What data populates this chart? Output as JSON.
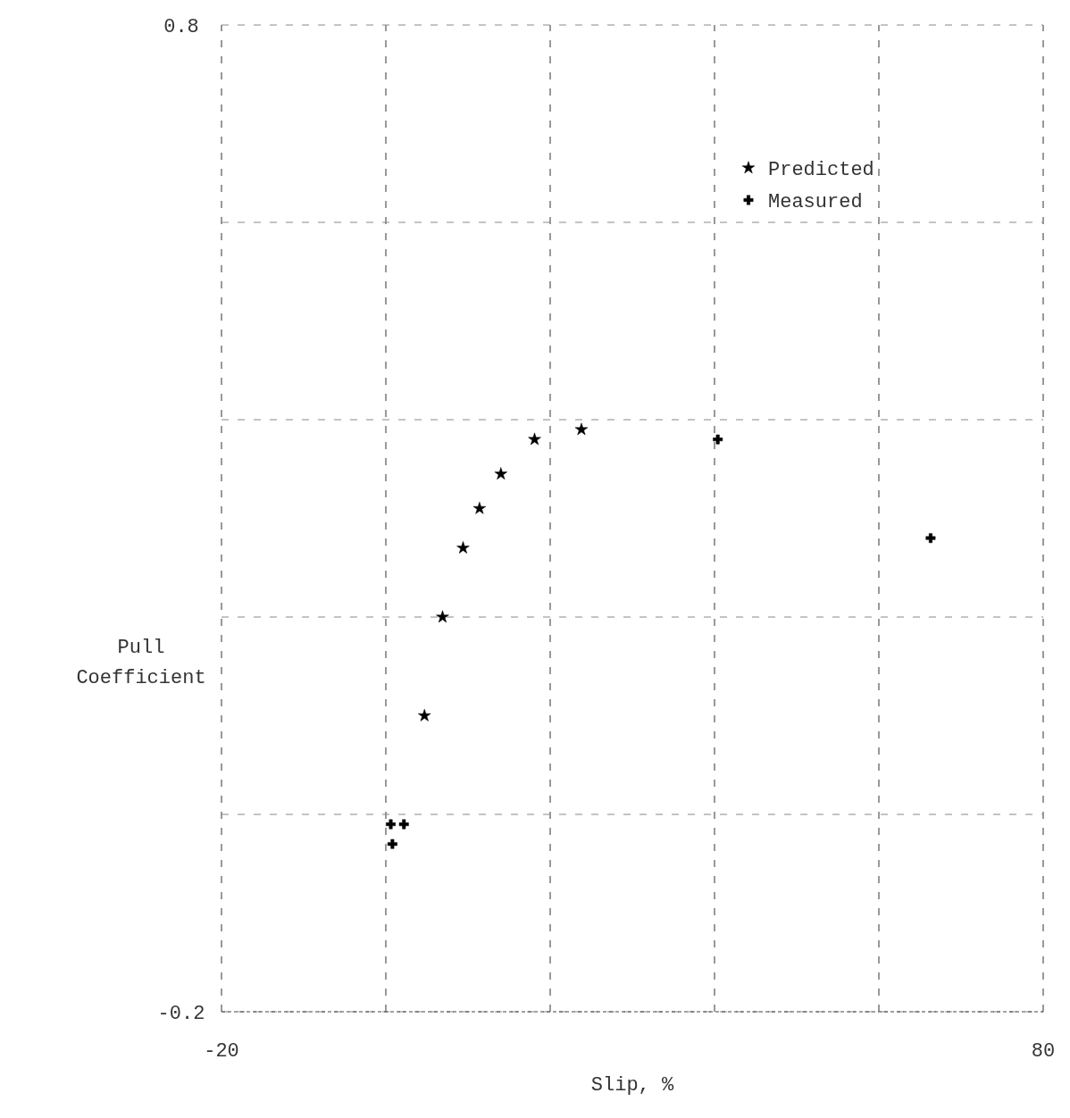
{
  "chart_data": {
    "type": "scatter",
    "xlabel": "Slip, %",
    "ylabel": "Pull\nCoefficient",
    "xlim": [
      -20,
      80
    ],
    "ylim": [
      -0.2,
      0.8
    ],
    "xticks": [
      -20,
      {
        "value": 0,
        "label": null
      },
      {
        "value": 20,
        "label": null
      },
      {
        "value": 40,
        "label": null
      },
      {
        "value": 60,
        "label": null
      },
      80
    ],
    "yticks": [
      -0.2,
      {
        "value": 0,
        "label": null
      },
      {
        "value": 0.2,
        "label": null
      },
      {
        "value": 0.4,
        "label": null
      },
      {
        "value": 0.6,
        "label": null
      },
      0.8
    ],
    "grid": true,
    "legend": "top right",
    "series": [
      {
        "name": "Predicted",
        "color": "#000000",
        "marker": "star",
        "x": [
          4.7,
          6.9,
          9.4,
          11.4,
          14.0,
          18.1,
          23.8
        ],
        "values": [
          0.1,
          0.2,
          0.27,
          0.31,
          0.345,
          0.38,
          0.39
        ]
      },
      {
        "name": "Measured",
        "color": "#000000",
        "marker": "cross",
        "x": [
          0.6,
          0.8,
          2.2,
          40.4,
          66.3
        ],
        "values": [
          -0.01,
          -0.03,
          -0.01,
          0.38,
          0.28
        ]
      }
    ]
  }
}
